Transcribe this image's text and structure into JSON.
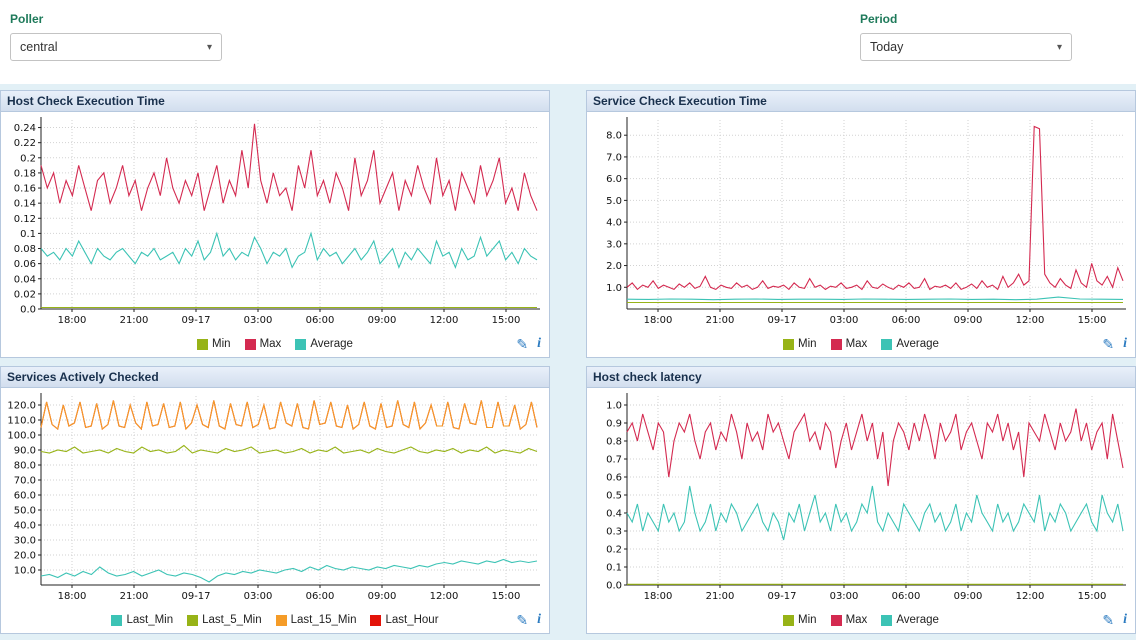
{
  "topbar": {
    "poller_label": "Poller",
    "poller_value": "central",
    "period_label": "Period",
    "period_value": "Today"
  },
  "icons": {
    "caret": "▾",
    "edit": "✎",
    "info": "i"
  },
  "colors": {
    "label_green": "#1e7a5a",
    "icon_blue": "#2d7cc1",
    "panel_header_bg": "#d2deee",
    "dashboard_bg": "#e2f0f6",
    "min": "#97b317",
    "max": "#d42a50",
    "average": "#3cc3b5",
    "last_min": "#3cc3b5",
    "last_5_min": "#97b317",
    "last_15_min": "#f59c28",
    "last_hour": "#e31309"
  },
  "chart_data": [
    {
      "type": "line",
      "title": "Host Check Execution Time",
      "xlabel": "",
      "ylabel": "",
      "grid": true,
      "legend_position": "bottom",
      "x_tick_labels": [
        "18:00",
        "21:00",
        "09-17",
        "03:00",
        "06:00",
        "09:00",
        "12:00",
        "15:00"
      ],
      "ylim": [
        0,
        0.25
      ],
      "yticks": [
        0,
        0.02,
        0.04,
        0.06,
        0.08,
        0.1,
        0.12,
        0.14,
        0.16,
        0.18,
        0.2,
        0.22,
        0.24
      ],
      "ytick_labels": [
        "0.0",
        "0.02",
        "0.04",
        "0.06",
        "0.08",
        "0.1",
        "0.12",
        "0.14",
        "0.16",
        "0.18",
        "0.2",
        "0.22",
        "0.24"
      ],
      "series": [
        {
          "name": "Min",
          "color": "#97b317",
          "values": [
            0.002,
            0.002
          ]
        },
        {
          "name": "Max",
          "color": "#d42a50",
          "values": [
            0.19,
            0.16,
            0.18,
            0.14,
            0.17,
            0.15,
            0.19,
            0.16,
            0.13,
            0.17,
            0.18,
            0.14,
            0.16,
            0.19,
            0.15,
            0.17,
            0.13,
            0.16,
            0.18,
            0.15,
            0.2,
            0.16,
            0.14,
            0.17,
            0.15,
            0.18,
            0.13,
            0.16,
            0.19,
            0.14,
            0.17,
            0.15,
            0.21,
            0.16,
            0.245,
            0.17,
            0.14,
            0.18,
            0.15,
            0.16,
            0.13,
            0.19,
            0.16,
            0.21,
            0.15,
            0.17,
            0.14,
            0.18,
            0.16,
            0.13,
            0.2,
            0.15,
            0.17,
            0.21,
            0.14,
            0.16,
            0.18,
            0.13,
            0.17,
            0.15,
            0.19,
            0.16,
            0.14,
            0.2,
            0.15,
            0.17,
            0.13,
            0.18,
            0.16,
            0.14,
            0.19,
            0.15,
            0.17,
            0.2,
            0.14,
            0.16,
            0.13,
            0.18,
            0.15,
            0.13
          ]
        },
        {
          "name": "Average",
          "color": "#3cc3b5",
          "values": [
            0.08,
            0.07,
            0.075,
            0.065,
            0.08,
            0.07,
            0.09,
            0.075,
            0.06,
            0.08,
            0.07,
            0.065,
            0.075,
            0.08,
            0.07,
            0.06,
            0.075,
            0.07,
            0.08,
            0.065,
            0.07,
            0.075,
            0.06,
            0.08,
            0.07,
            0.09,
            0.065,
            0.075,
            0.1,
            0.07,
            0.08,
            0.065,
            0.075,
            0.07,
            0.095,
            0.08,
            0.06,
            0.075,
            0.07,
            0.08,
            0.055,
            0.07,
            0.075,
            0.1,
            0.065,
            0.08,
            0.07,
            0.075,
            0.06,
            0.07,
            0.08,
            0.065,
            0.075,
            0.09,
            0.06,
            0.07,
            0.08,
            0.055,
            0.075,
            0.065,
            0.08,
            0.07,
            0.06,
            0.09,
            0.07,
            0.075,
            0.055,
            0.08,
            0.065,
            0.07,
            0.095,
            0.07,
            0.08,
            0.09,
            0.065,
            0.075,
            0.06,
            0.08,
            0.07,
            0.065
          ]
        }
      ]
    },
    {
      "type": "line",
      "title": "Service Check Execution Time",
      "xlabel": "",
      "ylabel": "",
      "grid": true,
      "legend_position": "bottom",
      "x_tick_labels": [
        "18:00",
        "21:00",
        "09-17",
        "03:00",
        "06:00",
        "09:00",
        "12:00",
        "15:00"
      ],
      "ylim": [
        0,
        8.7
      ],
      "yticks": [
        1,
        2,
        3,
        4,
        5,
        6,
        7,
        8
      ],
      "ytick_labels": [
        "1.0",
        "2.0",
        "3.0",
        "4.0",
        "5.0",
        "6.0",
        "7.0",
        "8.0"
      ],
      "series": [
        {
          "name": "Min",
          "color": "#97b317",
          "values": [
            0.3,
            0.3
          ]
        },
        {
          "name": "Max",
          "color": "#d42a50",
          "values": [
            1.0,
            1.2,
            0.9,
            1.1,
            1.0,
            1.3,
            0.95,
            1.1,
            1.0,
            0.9,
            1.15,
            1.0,
            1.2,
            0.95,
            1.05,
            1.5,
            1.0,
            0.9,
            1.1,
            1.0,
            0.95,
            1.2,
            1.0,
            1.1,
            0.9,
            1.0,
            1.3,
            0.95,
            1.05,
            1.0,
            1.1,
            0.9,
            1.2,
            1.0,
            0.95,
            1.4,
            1.0,
            1.1,
            0.9,
            1.05,
            1.0,
            1.2,
            0.95,
            1.0,
            1.1,
            0.9,
            1.3,
            1.0,
            0.95,
            1.15,
            1.0,
            0.9,
            1.1,
            1.0,
            1.2,
            0.95,
            1.0,
            1.4,
            0.9,
            1.05,
            1.0,
            1.1,
            0.95,
            1.2,
            0.9,
            1.0,
            1.15,
            0.95,
            1.3,
            1.0,
            1.1,
            0.9,
            1.5,
            1.0,
            1.2,
            1.6,
            1.1,
            1.3,
            8.4,
            8.3,
            1.6,
            1.2,
            1.0,
            1.4,
            1.1,
            0.95,
            1.8,
            1.2,
            1.0,
            2.1,
            1.3,
            1.1,
            1.5,
            1.0,
            1.9,
            1.3
          ]
        },
        {
          "name": "Average",
          "color": "#3cc3b5",
          "values": [
            0.45,
            0.44,
            0.46,
            0.45,
            0.43,
            0.45,
            0.46,
            0.44,
            0.45,
            0.45,
            0.44,
            0.46,
            0.45,
            0.44,
            0.45,
            0.46,
            0.44,
            0.45,
            0.43,
            0.45,
            0.55,
            0.46,
            0.45,
            0.44
          ]
        }
      ]
    },
    {
      "type": "line",
      "title": "Services Actively Checked",
      "xlabel": "",
      "ylabel": "",
      "grid": true,
      "legend_position": "bottom",
      "x_tick_labels": [
        "18:00",
        "21:00",
        "09-17",
        "03:00",
        "06:00",
        "09:00",
        "12:00",
        "15:00"
      ],
      "ylim": [
        0,
        126
      ],
      "yticks": [
        10,
        20,
        30,
        40,
        50,
        60,
        70,
        80,
        90,
        100,
        110,
        120
      ],
      "ytick_labels": [
        "10.0",
        "20.0",
        "30.0",
        "40.0",
        "50.0",
        "60.0",
        "70.0",
        "80.0",
        "90.0",
        "100.0",
        "110.0",
        "120.0"
      ],
      "series": [
        {
          "name": "Last_Min",
          "color": "#3cc3b5",
          "values": [
            6,
            7,
            5,
            8,
            6,
            9,
            7,
            12,
            8,
            6,
            7,
            9,
            6,
            8,
            10,
            7,
            6,
            8,
            7,
            5,
            2,
            6,
            8,
            7,
            9,
            8,
            10,
            9,
            8,
            10,
            11,
            9,
            12,
            10,
            13,
            11,
            10,
            12,
            11,
            10,
            12,
            11,
            13,
            12,
            11,
            13,
            12,
            14,
            15,
            14,
            16,
            15,
            14,
            16,
            15,
            17,
            15,
            16,
            15,
            16
          ]
        },
        {
          "name": "Last_5_Min",
          "color": "#97b317",
          "values": [
            89,
            88,
            90,
            89,
            92,
            88,
            89,
            90,
            88,
            91,
            89,
            88,
            92,
            89,
            90,
            88,
            89,
            93,
            88,
            90,
            89,
            88,
            91,
            89,
            90,
            92,
            88,
            89,
            90,
            88,
            89,
            91,
            88,
            90,
            89,
            92,
            88,
            89,
            90,
            88,
            91,
            89,
            88,
            90,
            92,
            89,
            88,
            90,
            89,
            91,
            88,
            90,
            89,
            92,
            88,
            90,
            89,
            88,
            91,
            89
          ]
        },
        {
          "name": "Last_15_Min",
          "color": "#f59c28",
          "values": [
            105,
            122,
            107,
            104,
            120,
            106,
            108,
            122,
            105,
            106,
            121,
            104,
            107,
            123,
            106,
            105,
            120,
            108,
            104,
            122,
            106,
            107,
            121,
            105,
            106,
            122,
            104,
            108,
            120,
            107,
            105,
            123,
            106,
            104,
            121,
            107,
            106,
            122,
            105,
            107,
            120,
            104,
            105,
            122,
            108,
            106,
            121,
            105,
            104,
            123,
            107,
            108,
            122,
            106,
            105,
            120,
            104,
            107,
            122,
            106,
            104,
            121,
            105,
            106,
            123,
            107,
            105,
            122,
            104,
            108,
            120,
            106,
            106,
            122,
            105,
            104,
            121,
            108,
            107,
            123,
            105,
            105,
            122,
            106,
            106,
            120,
            104,
            107,
            122,
            105
          ]
        },
        {
          "name": "Last_Hour",
          "color": "#e31309",
          "values_ref": "Last_15_Min",
          "z": 0,
          "note": "overlaps Last_15_Min, not separately visible"
        }
      ]
    },
    {
      "type": "line",
      "title": "Host check latency",
      "xlabel": "",
      "ylabel": "",
      "grid": true,
      "legend_position": "bottom",
      "x_tick_labels": [
        "18:00",
        "21:00",
        "09-17",
        "03:00",
        "06:00",
        "09:00",
        "12:00",
        "15:00"
      ],
      "ylim": [
        0,
        1.05
      ],
      "yticks": [
        0,
        0.1,
        0.2,
        0.3,
        0.4,
        0.5,
        0.6,
        0.7,
        0.8,
        0.9,
        1.0
      ],
      "ytick_labels": [
        "0.0",
        "0.1",
        "0.2",
        "0.3",
        "0.4",
        "0.5",
        "0.6",
        "0.7",
        "0.8",
        "0.9",
        "1.0"
      ],
      "series": [
        {
          "name": "Min",
          "color": "#97b317",
          "values": [
            0.004,
            0.004
          ]
        },
        {
          "name": "Max",
          "color": "#d42a50",
          "values": [
            0.85,
            0.9,
            0.8,
            0.95,
            0.85,
            0.75,
            0.9,
            0.85,
            0.6,
            0.8,
            0.9,
            0.85,
            0.95,
            0.8,
            0.7,
            0.85,
            0.9,
            0.75,
            0.85,
            0.8,
            0.95,
            0.85,
            0.7,
            0.9,
            0.8,
            0.85,
            0.75,
            0.95,
            0.85,
            0.9,
            0.8,
            0.7,
            0.85,
            0.9,
            0.95,
            0.8,
            0.85,
            0.75,
            0.9,
            0.85,
            0.65,
            0.8,
            0.9,
            0.75,
            0.85,
            0.95,
            0.8,
            0.9,
            0.7,
            0.85,
            0.55,
            0.8,
            0.9,
            0.85,
            0.75,
            0.9,
            0.8,
            0.95,
            0.85,
            0.7,
            0.9,
            0.8,
            0.85,
            0.95,
            0.75,
            0.85,
            0.9,
            0.8,
            0.7,
            0.9,
            0.85,
            0.95,
            0.8,
            0.9,
            0.75,
            0.85,
            0.6,
            0.9,
            0.85,
            0.8,
            0.95,
            0.85,
            0.75,
            0.9,
            0.8,
            0.85,
            0.98,
            0.8,
            0.9,
            0.75,
            0.85,
            0.9,
            0.7,
            0.95,
            0.8,
            0.65
          ]
        },
        {
          "name": "Average",
          "color": "#3cc3b5",
          "values": [
            0.4,
            0.35,
            0.45,
            0.3,
            0.4,
            0.35,
            0.3,
            0.45,
            0.35,
            0.4,
            0.3,
            0.35,
            0.55,
            0.4,
            0.3,
            0.35,
            0.45,
            0.3,
            0.4,
            0.35,
            0.45,
            0.4,
            0.3,
            0.35,
            0.4,
            0.45,
            0.35,
            0.3,
            0.4,
            0.35,
            0.25,
            0.4,
            0.35,
            0.45,
            0.3,
            0.4,
            0.5,
            0.35,
            0.4,
            0.3,
            0.45,
            0.35,
            0.4,
            0.3,
            0.35,
            0.45,
            0.4,
            0.55,
            0.35,
            0.3,
            0.4,
            0.35,
            0.3,
            0.45,
            0.4,
            0.35,
            0.3,
            0.4,
            0.45,
            0.35,
            0.4,
            0.3,
            0.35,
            0.45,
            0.3,
            0.4,
            0.35,
            0.5,
            0.4,
            0.35,
            0.3,
            0.45,
            0.35,
            0.4,
            0.3,
            0.35,
            0.45,
            0.4,
            0.35,
            0.5,
            0.3,
            0.4,
            0.35,
            0.45,
            0.4,
            0.3,
            0.35,
            0.4,
            0.45,
            0.35,
            0.3,
            0.5,
            0.4,
            0.35,
            0.45,
            0.3
          ]
        }
      ]
    }
  ]
}
